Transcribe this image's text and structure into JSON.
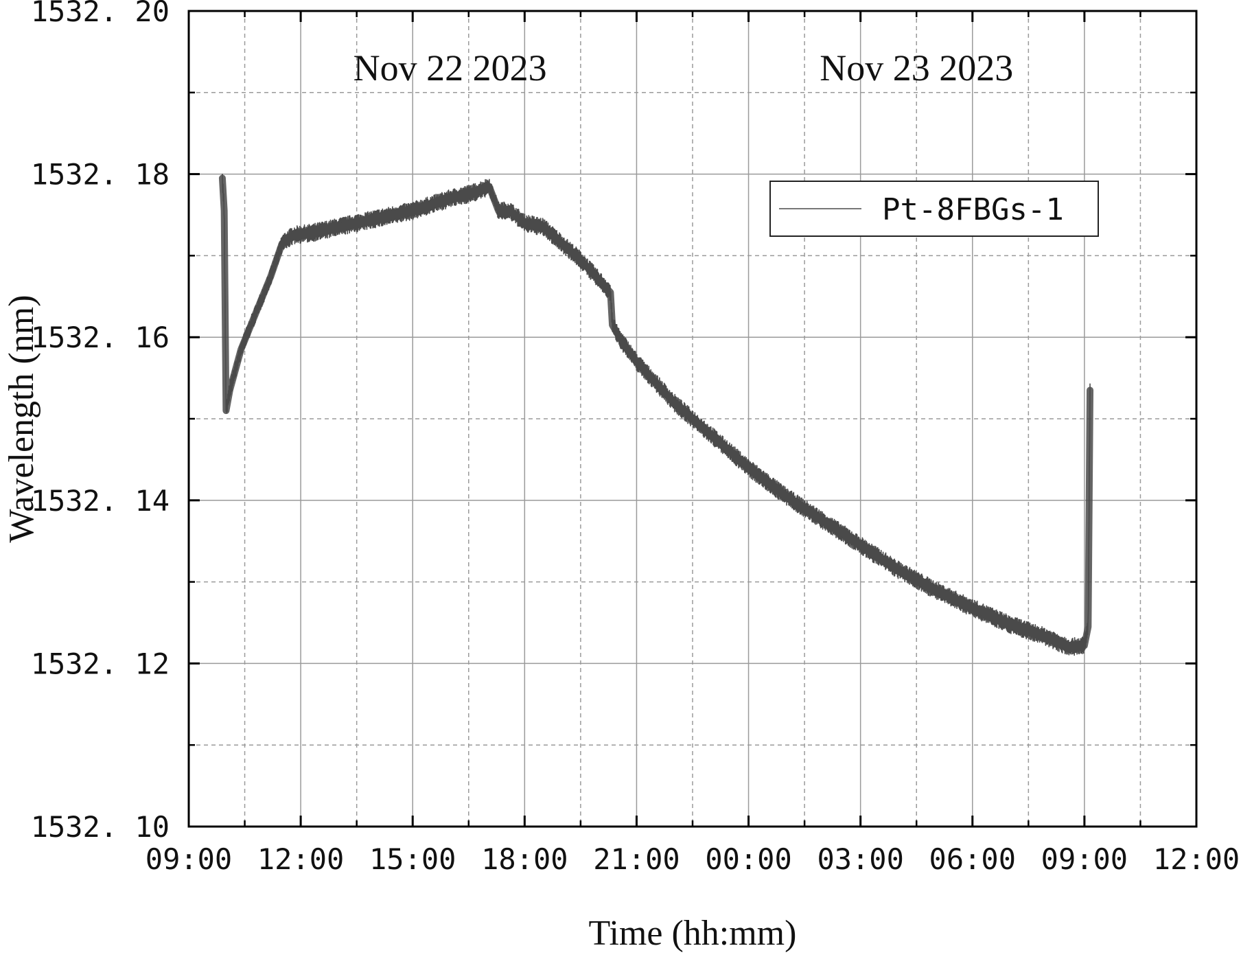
{
  "chart_data": {
    "type": "line",
    "xlabel": "Time (hh:mm)",
    "ylabel": "Wavelength (nm)",
    "x_unit": "hours since Nov 22 2023 00:00",
    "xlim": [
      9,
      36
    ],
    "ylim": [
      1532.1,
      1532.2
    ],
    "x_ticks": [
      9,
      12,
      15,
      18,
      21,
      24,
      27,
      30,
      33,
      36
    ],
    "x_tick_labels": [
      "09:00",
      "12:00",
      "15:00",
      "18:00",
      "21:00",
      "00:00",
      "03:00",
      "06:00",
      "09:00",
      "12:00"
    ],
    "y_ticks": [
      1532.1,
      1532.12,
      1532.14,
      1532.16,
      1532.18,
      1532.2
    ],
    "y_tick_labels": [
      "1532. 10",
      "1532. 12",
      "1532. 14",
      "1532. 16",
      "1532. 18",
      "1532. 20"
    ],
    "grid": true,
    "legend": {
      "position": "top-right"
    },
    "annotations": [
      {
        "text": "Nov 22 2023",
        "x": 16.0,
        "y": 1532.1915
      },
      {
        "text": "Nov 23 2023",
        "x": 28.5,
        "y": 1532.1915
      }
    ],
    "series": [
      {
        "name": "Pt-8FBGs-1",
        "color": "#4a4a4a",
        "band_halfwidth_nm": 0.001,
        "x": [
          9.9,
          9.95,
          10.0,
          10.1,
          10.4,
          10.8,
          11.2,
          11.5,
          11.8,
          12.3,
          13.0,
          14.0,
          15.0,
          16.0,
          16.7,
          17.05,
          17.3,
          17.6,
          18.0,
          18.5,
          19.0,
          19.5,
          20.0,
          20.3,
          20.35,
          20.6,
          21.0,
          21.5,
          22.0,
          23.0,
          24.0,
          25.0,
          26.0,
          27.0,
          28.0,
          29.0,
          30.0,
          31.0,
          32.0,
          32.6,
          33.0,
          33.1,
          33.15
        ],
        "y": [
          1532.1795,
          1532.1755,
          1532.151,
          1532.1535,
          1532.1585,
          1532.163,
          1532.1675,
          1532.1715,
          1532.1725,
          1532.1728,
          1532.1735,
          1532.1745,
          1532.1755,
          1532.177,
          1532.1778,
          1532.1785,
          1532.1755,
          1532.1755,
          1532.174,
          1532.1735,
          1532.1715,
          1532.1695,
          1532.167,
          1532.1655,
          1532.1615,
          1532.1595,
          1532.157,
          1532.1545,
          1532.152,
          1532.148,
          1532.144,
          1532.1405,
          1532.1375,
          1532.1345,
          1532.1315,
          1532.129,
          1532.1268,
          1532.1248,
          1532.1232,
          1532.122,
          1532.1222,
          1532.1245,
          1532.1535
        ]
      }
    ]
  }
}
